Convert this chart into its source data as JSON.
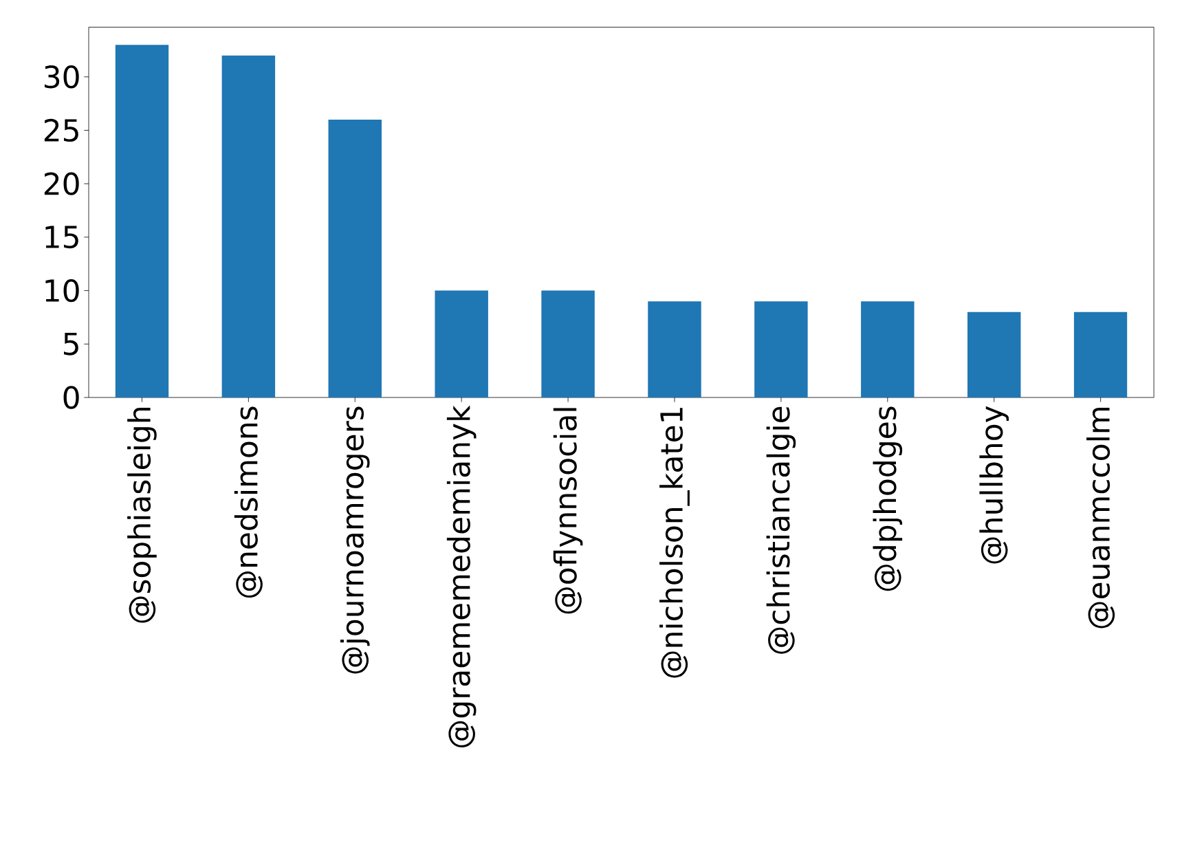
{
  "chart_data": {
    "type": "bar",
    "categories": [
      "@sophiasleigh",
      "@nedsimons",
      "@journoamrogers",
      "@graememedemianyk",
      "@oflynnsocial",
      "@nicholson_kate1",
      "@christiancalgie",
      "@dpjhodges",
      "@hullbhoy",
      "@euanmccolm"
    ],
    "values": [
      33,
      32,
      26,
      10,
      10,
      9,
      9,
      9,
      8,
      8
    ],
    "color": "#1f77b4",
    "ylim": [
      0,
      34.65
    ],
    "yticks": [
      0,
      5,
      10,
      15,
      20,
      25,
      30
    ],
    "grid": false
  }
}
